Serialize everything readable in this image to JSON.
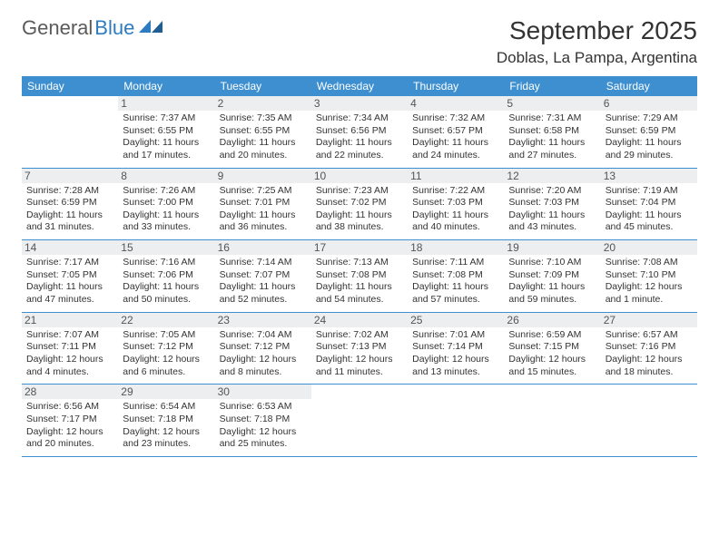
{
  "brand": {
    "part1": "General",
    "part2": "Blue"
  },
  "title": "September 2025",
  "location": "Doblas, La Pampa, Argentina",
  "colors": {
    "header_bg": "#3d8fcf",
    "header_text": "#ffffff",
    "daynum_bg": "#eceef0",
    "border": "#3d8fcf",
    "brand_gray": "#5a5a5a",
    "brand_blue": "#2d7cc1"
  },
  "daynames": [
    "Sunday",
    "Monday",
    "Tuesday",
    "Wednesday",
    "Thursday",
    "Friday",
    "Saturday"
  ],
  "weeks": [
    [
      {
        "n": "",
        "sr": "",
        "ss": "",
        "d1": "",
        "d2": ""
      },
      {
        "n": "1",
        "sr": "Sunrise: 7:37 AM",
        "ss": "Sunset: 6:55 PM",
        "d1": "Daylight: 11 hours",
        "d2": "and 17 minutes."
      },
      {
        "n": "2",
        "sr": "Sunrise: 7:35 AM",
        "ss": "Sunset: 6:55 PM",
        "d1": "Daylight: 11 hours",
        "d2": "and 20 minutes."
      },
      {
        "n": "3",
        "sr": "Sunrise: 7:34 AM",
        "ss": "Sunset: 6:56 PM",
        "d1": "Daylight: 11 hours",
        "d2": "and 22 minutes."
      },
      {
        "n": "4",
        "sr": "Sunrise: 7:32 AM",
        "ss": "Sunset: 6:57 PM",
        "d1": "Daylight: 11 hours",
        "d2": "and 24 minutes."
      },
      {
        "n": "5",
        "sr": "Sunrise: 7:31 AM",
        "ss": "Sunset: 6:58 PM",
        "d1": "Daylight: 11 hours",
        "d2": "and 27 minutes."
      },
      {
        "n": "6",
        "sr": "Sunrise: 7:29 AM",
        "ss": "Sunset: 6:59 PM",
        "d1": "Daylight: 11 hours",
        "d2": "and 29 minutes."
      }
    ],
    [
      {
        "n": "7",
        "sr": "Sunrise: 7:28 AM",
        "ss": "Sunset: 6:59 PM",
        "d1": "Daylight: 11 hours",
        "d2": "and 31 minutes."
      },
      {
        "n": "8",
        "sr": "Sunrise: 7:26 AM",
        "ss": "Sunset: 7:00 PM",
        "d1": "Daylight: 11 hours",
        "d2": "and 33 minutes."
      },
      {
        "n": "9",
        "sr": "Sunrise: 7:25 AM",
        "ss": "Sunset: 7:01 PM",
        "d1": "Daylight: 11 hours",
        "d2": "and 36 minutes."
      },
      {
        "n": "10",
        "sr": "Sunrise: 7:23 AM",
        "ss": "Sunset: 7:02 PM",
        "d1": "Daylight: 11 hours",
        "d2": "and 38 minutes."
      },
      {
        "n": "11",
        "sr": "Sunrise: 7:22 AM",
        "ss": "Sunset: 7:03 PM",
        "d1": "Daylight: 11 hours",
        "d2": "and 40 minutes."
      },
      {
        "n": "12",
        "sr": "Sunrise: 7:20 AM",
        "ss": "Sunset: 7:03 PM",
        "d1": "Daylight: 11 hours",
        "d2": "and 43 minutes."
      },
      {
        "n": "13",
        "sr": "Sunrise: 7:19 AM",
        "ss": "Sunset: 7:04 PM",
        "d1": "Daylight: 11 hours",
        "d2": "and 45 minutes."
      }
    ],
    [
      {
        "n": "14",
        "sr": "Sunrise: 7:17 AM",
        "ss": "Sunset: 7:05 PM",
        "d1": "Daylight: 11 hours",
        "d2": "and 47 minutes."
      },
      {
        "n": "15",
        "sr": "Sunrise: 7:16 AM",
        "ss": "Sunset: 7:06 PM",
        "d1": "Daylight: 11 hours",
        "d2": "and 50 minutes."
      },
      {
        "n": "16",
        "sr": "Sunrise: 7:14 AM",
        "ss": "Sunset: 7:07 PM",
        "d1": "Daylight: 11 hours",
        "d2": "and 52 minutes."
      },
      {
        "n": "17",
        "sr": "Sunrise: 7:13 AM",
        "ss": "Sunset: 7:08 PM",
        "d1": "Daylight: 11 hours",
        "d2": "and 54 minutes."
      },
      {
        "n": "18",
        "sr": "Sunrise: 7:11 AM",
        "ss": "Sunset: 7:08 PM",
        "d1": "Daylight: 11 hours",
        "d2": "and 57 minutes."
      },
      {
        "n": "19",
        "sr": "Sunrise: 7:10 AM",
        "ss": "Sunset: 7:09 PM",
        "d1": "Daylight: 11 hours",
        "d2": "and 59 minutes."
      },
      {
        "n": "20",
        "sr": "Sunrise: 7:08 AM",
        "ss": "Sunset: 7:10 PM",
        "d1": "Daylight: 12 hours",
        "d2": "and 1 minute."
      }
    ],
    [
      {
        "n": "21",
        "sr": "Sunrise: 7:07 AM",
        "ss": "Sunset: 7:11 PM",
        "d1": "Daylight: 12 hours",
        "d2": "and 4 minutes."
      },
      {
        "n": "22",
        "sr": "Sunrise: 7:05 AM",
        "ss": "Sunset: 7:12 PM",
        "d1": "Daylight: 12 hours",
        "d2": "and 6 minutes."
      },
      {
        "n": "23",
        "sr": "Sunrise: 7:04 AM",
        "ss": "Sunset: 7:12 PM",
        "d1": "Daylight: 12 hours",
        "d2": "and 8 minutes."
      },
      {
        "n": "24",
        "sr": "Sunrise: 7:02 AM",
        "ss": "Sunset: 7:13 PM",
        "d1": "Daylight: 12 hours",
        "d2": "and 11 minutes."
      },
      {
        "n": "25",
        "sr": "Sunrise: 7:01 AM",
        "ss": "Sunset: 7:14 PM",
        "d1": "Daylight: 12 hours",
        "d2": "and 13 minutes."
      },
      {
        "n": "26",
        "sr": "Sunrise: 6:59 AM",
        "ss": "Sunset: 7:15 PM",
        "d1": "Daylight: 12 hours",
        "d2": "and 15 minutes."
      },
      {
        "n": "27",
        "sr": "Sunrise: 6:57 AM",
        "ss": "Sunset: 7:16 PM",
        "d1": "Daylight: 12 hours",
        "d2": "and 18 minutes."
      }
    ],
    [
      {
        "n": "28",
        "sr": "Sunrise: 6:56 AM",
        "ss": "Sunset: 7:17 PM",
        "d1": "Daylight: 12 hours",
        "d2": "and 20 minutes."
      },
      {
        "n": "29",
        "sr": "Sunrise: 6:54 AM",
        "ss": "Sunset: 7:18 PM",
        "d1": "Daylight: 12 hours",
        "d2": "and 23 minutes."
      },
      {
        "n": "30",
        "sr": "Sunrise: 6:53 AM",
        "ss": "Sunset: 7:18 PM",
        "d1": "Daylight: 12 hours",
        "d2": "and 25 minutes."
      },
      {
        "n": "",
        "sr": "",
        "ss": "",
        "d1": "",
        "d2": ""
      },
      {
        "n": "",
        "sr": "",
        "ss": "",
        "d1": "",
        "d2": ""
      },
      {
        "n": "",
        "sr": "",
        "ss": "",
        "d1": "",
        "d2": ""
      },
      {
        "n": "",
        "sr": "",
        "ss": "",
        "d1": "",
        "d2": ""
      }
    ]
  ]
}
